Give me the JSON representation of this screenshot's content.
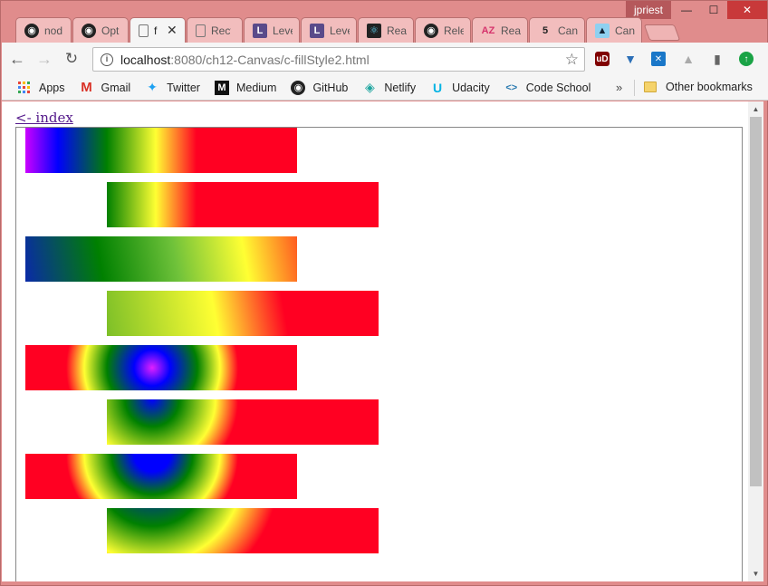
{
  "window": {
    "user": "jpriest",
    "min": "—",
    "max": "☐",
    "close": "✕"
  },
  "tabs": [
    {
      "title": "nod",
      "icon": "github-icon",
      "active": false
    },
    {
      "title": "Opt",
      "icon": "github-icon",
      "active": false
    },
    {
      "title": "f",
      "icon": "page-icon",
      "active": true
    },
    {
      "title": "Rect",
      "icon": "page-icon",
      "active": false
    },
    {
      "title": "Leve",
      "icon": "levelup-icon",
      "active": false
    },
    {
      "title": "Leve",
      "icon": "levelup-icon",
      "active": false
    },
    {
      "title": "Rea",
      "icon": "react-icon",
      "active": false
    },
    {
      "title": "Rele",
      "icon": "github-icon",
      "active": false
    },
    {
      "title": "Rea",
      "icon": "az-icon",
      "active": false
    },
    {
      "title": "Can",
      "icon": "html5-icon",
      "active": false
    },
    {
      "title": "Can",
      "icon": "bird-icon",
      "active": false
    }
  ],
  "toolbar": {
    "back": "←",
    "forward": "→",
    "reload": "↻",
    "url_host": "localhost",
    "url_path": ":8080/ch12-Canvas/c-fillStyle2.html",
    "star": "☆"
  },
  "bookmarks": {
    "items": [
      {
        "label": "Apps",
        "icon": "apps-icon"
      },
      {
        "label": "Gmail",
        "icon": "gmail-icon"
      },
      {
        "label": "Twitter",
        "icon": "twitter-icon"
      },
      {
        "label": "Medium",
        "icon": "medium-icon"
      },
      {
        "label": "GitHub",
        "icon": "github-icon"
      },
      {
        "label": "Netlify",
        "icon": "netlify-icon"
      },
      {
        "label": "Udacity",
        "icon": "udacity-icon"
      },
      {
        "label": "Code School",
        "icon": "code-icon"
      }
    ],
    "more": "»",
    "other": "Other bookmarks"
  },
  "page": {
    "index_link": "<- index"
  },
  "colors": {
    "frame": "#e08c8c",
    "link": "#551a8b",
    "gradient_stops": [
      "#cc00ff",
      "#0000ff",
      "#008000",
      "#ffff33",
      "#ff0022"
    ]
  }
}
